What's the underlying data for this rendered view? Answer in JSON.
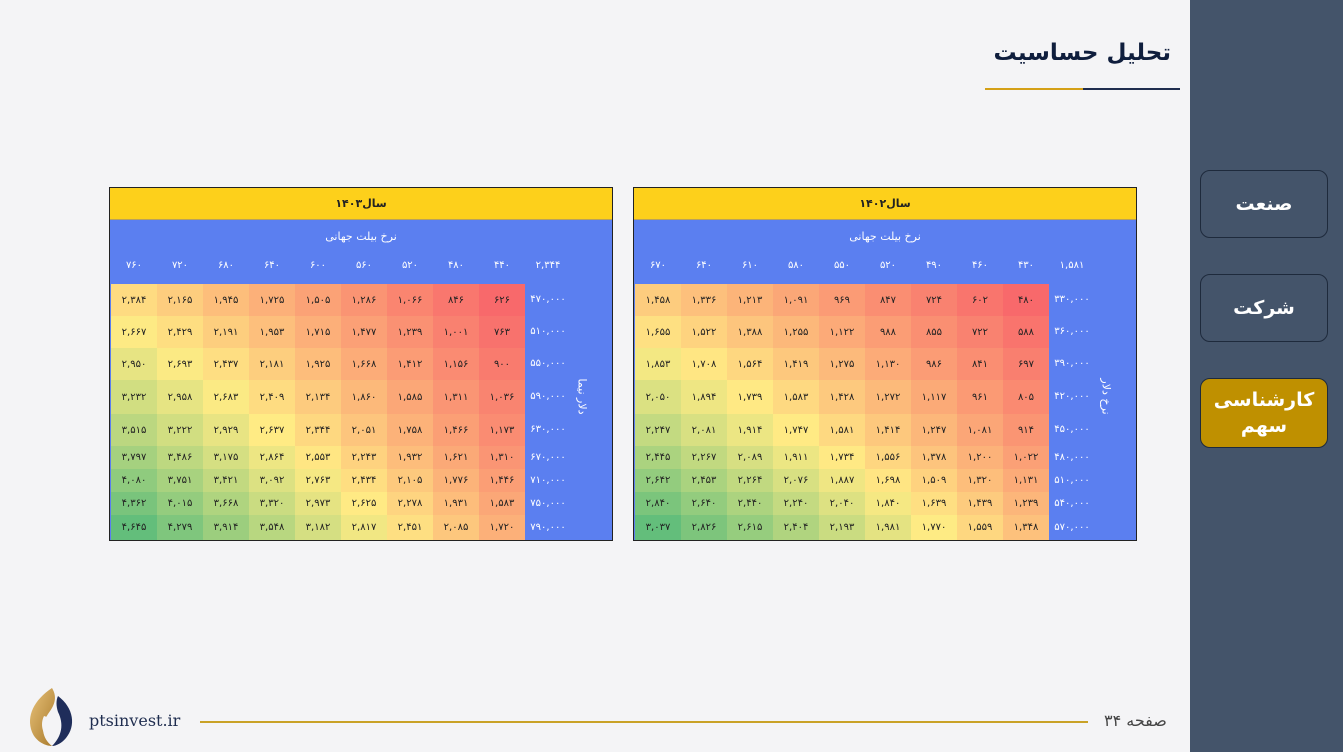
{
  "title": "تحلیل حساسیت",
  "nav": [
    {
      "label": "صنعت",
      "active": false
    },
    {
      "label": "شرکت",
      "active": false
    },
    {
      "label": "کارشناسی سهم",
      "active": true
    }
  ],
  "tables": [
    {
      "year": "سال۱۴۰۲",
      "ticket_label": "نرخ بیلت جهانی",
      "side_label": "نرخ دلار",
      "corner": "۱,۵۸۱",
      "cols": [
        "۴۳۰",
        "۴۶۰",
        "۴۹۰",
        "۵۲۰",
        "۵۵۰",
        "۵۸۰",
        "۶۱۰",
        "۶۴۰",
        "۶۷۰"
      ],
      "rows": [
        "۳۳۰,۰۰۰",
        "۳۶۰,۰۰۰",
        "۳۹۰,۰۰۰",
        "۴۲۰,۰۰۰",
        "۴۵۰,۰۰۰",
        "۴۸۰,۰۰۰",
        "۵۱۰,۰۰۰",
        "۵۴۰,۰۰۰",
        "۵۷۰,۰۰۰"
      ],
      "values": [
        [
          "۴۸۰",
          "۶۰۲",
          "۷۲۴",
          "۸۴۷",
          "۹۶۹",
          "۱,۰۹۱",
          "۱,۲۱۳",
          "۱,۳۳۶",
          "۱,۴۵۸"
        ],
        [
          "۵۸۸",
          "۷۲۲",
          "۸۵۵",
          "۹۸۸",
          "۱,۱۲۲",
          "۱,۲۵۵",
          "۱,۳۸۸",
          "۱,۵۲۲",
          "۱,۶۵۵"
        ],
        [
          "۶۹۷",
          "۸۴۱",
          "۹۸۶",
          "۱,۱۳۰",
          "۱,۲۷۵",
          "۱,۴۱۹",
          "۱,۵۶۴",
          "۱,۷۰۸",
          "۱,۸۵۳"
        ],
        [
          "۸۰۵",
          "۹۶۱",
          "۱,۱۱۷",
          "۱,۲۷۲",
          "۱,۴۲۸",
          "۱,۵۸۳",
          "۱,۷۳۹",
          "۱,۸۹۴",
          "۲,۰۵۰"
        ],
        [
          "۹۱۴",
          "۱,۰۸۱",
          "۱,۲۴۷",
          "۱,۴۱۴",
          "۱,۵۸۱",
          "۱,۷۴۷",
          "۱,۹۱۴",
          "۲,۰۸۱",
          "۲,۲۴۷"
        ],
        [
          "۱,۰۲۲",
          "۱,۲۰۰",
          "۱,۳۷۸",
          "۱,۵۵۶",
          "۱,۷۳۴",
          "۱,۹۱۱",
          "۲,۰۸۹",
          "۲,۲۶۷",
          "۲,۴۴۵"
        ],
        [
          "۱,۱۳۱",
          "۱,۳۲۰",
          "۱,۵۰۹",
          "۱,۶۹۸",
          "۱,۸۸۷",
          "۲,۰۷۶",
          "۲,۲۶۴",
          "۲,۴۵۳",
          "۲,۶۴۲"
        ],
        [
          "۱,۲۳۹",
          "۱,۴۳۹",
          "۱,۶۳۹",
          "۱,۸۴۰",
          "۲,۰۴۰",
          "۲,۲۴۰",
          "۲,۴۴۰",
          "۲,۶۴۰",
          "۲,۸۴۰"
        ],
        [
          "۱,۳۴۸",
          "۱,۵۵۹",
          "۱,۷۷۰",
          "۱,۹۸۱",
          "۲,۱۹۳",
          "۲,۴۰۴",
          "۲,۶۱۵",
          "۲,۸۲۶",
          "۳,۰۳۷"
        ]
      ]
    },
    {
      "year": "سال۱۴۰۳",
      "ticket_label": "نرخ بیلت جهانی",
      "side_label": "دلار نیما",
      "corner": "۲,۳۴۴",
      "cols": [
        "۴۴۰",
        "۴۸۰",
        "۵۲۰",
        "۵۶۰",
        "۶۰۰",
        "۶۴۰",
        "۶۸۰",
        "۷۲۰",
        "۷۶۰"
      ],
      "rows": [
        "۴۷۰,۰۰۰",
        "۵۱۰,۰۰۰",
        "۵۵۰,۰۰۰",
        "۵۹۰,۰۰۰",
        "۶۳۰,۰۰۰",
        "۶۷۰,۰۰۰",
        "۷۱۰,۰۰۰",
        "۷۵۰,۰۰۰",
        "۷۹۰,۰۰۰"
      ],
      "values": [
        [
          "۶۲۶",
          "۸۴۶",
          "۱,۰۶۶",
          "۱,۲۸۶",
          "۱,۵۰۵",
          "۱,۷۲۵",
          "۱,۹۴۵",
          "۲,۱۶۵",
          "۲,۳۸۴"
        ],
        [
          "۷۶۳",
          "۱,۰۰۱",
          "۱,۲۳۹",
          "۱,۴۷۷",
          "۱,۷۱۵",
          "۱,۹۵۳",
          "۲,۱۹۱",
          "۲,۴۲۹",
          "۲,۶۶۷"
        ],
        [
          "۹۰۰",
          "۱,۱۵۶",
          "۱,۴۱۲",
          "۱,۶۶۸",
          "۱,۹۲۵",
          "۲,۱۸۱",
          "۲,۴۳۷",
          "۲,۶۹۳",
          "۲,۹۵۰"
        ],
        [
          "۱,۰۳۶",
          "۱,۳۱۱",
          "۱,۵۸۵",
          "۱,۸۶۰",
          "۲,۱۳۴",
          "۲,۴۰۹",
          "۲,۶۸۳",
          "۲,۹۵۸",
          "۳,۲۳۲"
        ],
        [
          "۱,۱۷۳",
          "۱,۴۶۶",
          "۱,۷۵۸",
          "۲,۰۵۱",
          "۲,۳۴۴",
          "۲,۶۳۷",
          "۲,۹۲۹",
          "۳,۲۲۲",
          "۳,۵۱۵"
        ],
        [
          "۱,۳۱۰",
          "۱,۶۲۱",
          "۱,۹۳۲",
          "۲,۲۴۳",
          "۲,۵۵۳",
          "۲,۸۶۴",
          "۳,۱۷۵",
          "۳,۴۸۶",
          "۳,۷۹۷"
        ],
        [
          "۱,۴۴۶",
          "۱,۷۷۶",
          "۲,۱۰۵",
          "۲,۴۳۴",
          "۲,۷۶۳",
          "۳,۰۹۲",
          "۳,۴۲۱",
          "۳,۷۵۱",
          "۴,۰۸۰"
        ],
        [
          "۱,۵۸۳",
          "۱,۹۳۱",
          "۲,۲۷۸",
          "۲,۶۲۵",
          "۲,۹۷۳",
          "۳,۳۲۰",
          "۳,۶۶۸",
          "۴,۰۱۵",
          "۴,۳۶۲"
        ],
        [
          "۱,۷۲۰",
          "۲,۰۸۵",
          "۲,۴۵۱",
          "۲,۸۱۷",
          "۳,۱۸۲",
          "۳,۵۴۸",
          "۳,۹۱۴",
          "۴,۲۷۹",
          "۴,۶۴۵"
        ]
      ]
    }
  ],
  "footer": {
    "page": "صفحه ۳۴",
    "site": "ptsinvest.ir"
  },
  "colors": {
    "sidebar": "#44546a",
    "active_button": "#bf9000",
    "table_blue": "#5b7ff0",
    "header_yellow": "#fdd01b",
    "heat_low": "#f8696b",
    "heat_mid": "#ffeb84",
    "heat_high": "#63be7b"
  }
}
